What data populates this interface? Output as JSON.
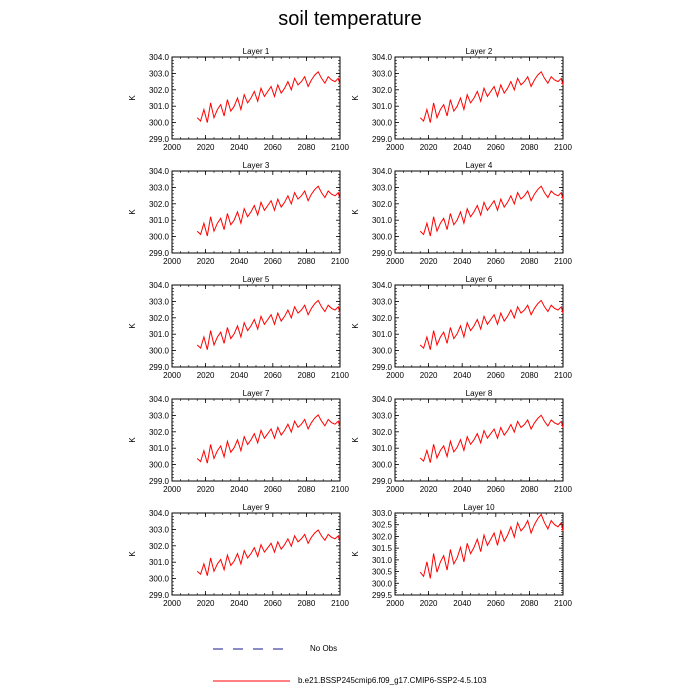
{
  "title": "soil temperature",
  "colors": {
    "series": "#ff0000",
    "axes": "#000000",
    "obs": "#1a1a8c"
  },
  "chart_data": {
    "type": "line",
    "layout": "5 rows x 2 columns",
    "xlim": [
      2000,
      2100
    ],
    "x_ticks": [
      "2000",
      "2020",
      "2040",
      "2060",
      "2080",
      "2100"
    ],
    "ylabel": "K",
    "x": [
      2015,
      2017,
      2019,
      2021,
      2023,
      2025,
      2027,
      2029,
      2031,
      2033,
      2035,
      2037,
      2039,
      2041,
      2043,
      2045,
      2047,
      2049,
      2051,
      2053,
      2055,
      2057,
      2059,
      2061,
      2063,
      2065,
      2067,
      2069,
      2071,
      2073,
      2075,
      2077,
      2079,
      2081,
      2083,
      2085,
      2087,
      2089,
      2091,
      2093,
      2095,
      2097,
      2099,
      2100
    ],
    "base_values": [
      300.3,
      300.1,
      300.8,
      300.0,
      301.2,
      300.3,
      300.8,
      301.1,
      300.4,
      301.4,
      300.7,
      301.0,
      301.5,
      300.8,
      301.7,
      301.2,
      301.5,
      301.9,
      301.3,
      302.1,
      301.6,
      301.9,
      302.2,
      301.6,
      302.3,
      301.8,
      302.1,
      302.5,
      302.0,
      302.7,
      302.3,
      302.5,
      302.8,
      302.2,
      302.6,
      302.9,
      303.1,
      302.7,
      302.4,
      302.8,
      302.6,
      302.5,
      302.7,
      302.3
    ],
    "panels": [
      {
        "title": "Layer 1",
        "ylim": [
          299.0,
          304.0
        ],
        "y_ticks": [
          "299.0",
          "300.0",
          "301.0",
          "302.0",
          "303.0",
          "304.0"
        ],
        "scale": 1.0
      },
      {
        "title": "Layer 2",
        "ylim": [
          299.0,
          304.0
        ],
        "y_ticks": [
          "299.0",
          "300.0",
          "301.0",
          "302.0",
          "303.0",
          "304.0"
        ],
        "scale": 1.0
      },
      {
        "title": "Layer 3",
        "ylim": [
          299.0,
          304.0
        ],
        "y_ticks": [
          "299.0",
          "300.0",
          "301.0",
          "302.0",
          "303.0",
          "304.0"
        ],
        "scale": 0.98
      },
      {
        "title": "Layer 4",
        "ylim": [
          299.0,
          304.0
        ],
        "y_ticks": [
          "299.0",
          "300.0",
          "301.0",
          "302.0",
          "303.0",
          "304.0"
        ],
        "scale": 0.98
      },
      {
        "title": "Layer 5",
        "ylim": [
          299.0,
          304.0
        ],
        "y_ticks": [
          "299.0",
          "300.0",
          "301.0",
          "302.0",
          "303.0",
          "304.0"
        ],
        "scale": 0.97
      },
      {
        "title": "Layer 6",
        "ylim": [
          299.0,
          304.0
        ],
        "y_ticks": [
          "299.0",
          "300.0",
          "301.0",
          "302.0",
          "303.0",
          "304.0"
        ],
        "scale": 0.97
      },
      {
        "title": "Layer 7",
        "ylim": [
          299.0,
          304.0
        ],
        "y_ticks": [
          "299.0",
          "300.0",
          "301.0",
          "302.0",
          "303.0",
          "304.0"
        ],
        "scale": 0.95
      },
      {
        "title": "Layer 8",
        "ylim": [
          299.0,
          304.0
        ],
        "y_ticks": [
          "299.0",
          "300.0",
          "301.0",
          "302.0",
          "303.0",
          "304.0"
        ],
        "scale": 0.93
      },
      {
        "title": "Layer 9",
        "ylim": [
          299.0,
          304.0
        ],
        "y_ticks": [
          "299.0",
          "300.0",
          "301.0",
          "302.0",
          "303.0",
          "304.0"
        ],
        "scale": 0.9
      },
      {
        "title": "Layer 10",
        "ylim": [
          299.5,
          303.0
        ],
        "y_ticks": [
          "299.5",
          "300.0",
          "300.5",
          "301.0",
          "301.5",
          "302.0",
          "302.5",
          "303.0"
        ],
        "scale": 0.88
      }
    ],
    "legend": [
      {
        "label": "No Obs",
        "style": "dashed"
      },
      {
        "label": "b.e21.BSSP245cmip6.f09_g17.CMIP6-SSP2-4.5.103",
        "style": "solid"
      }
    ]
  }
}
